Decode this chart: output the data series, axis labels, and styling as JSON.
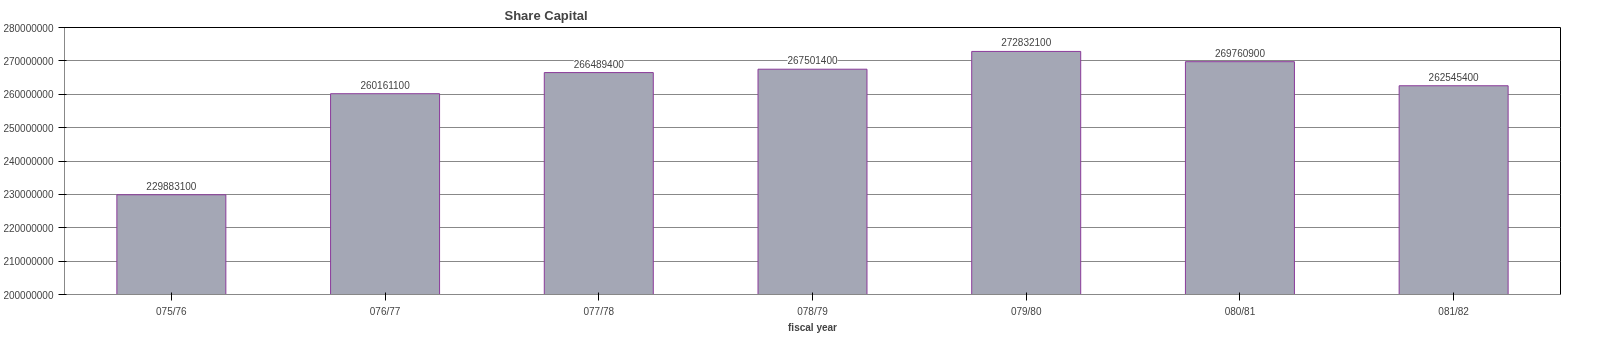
{
  "chart_data": {
    "type": "bar",
    "title": "Share Capital",
    "xlabel": "fiscal year",
    "categories": [
      "075/76",
      "076/77",
      "077/78",
      "078/79",
      "079/80",
      "080/81",
      "081/82"
    ],
    "values": [
      229883100,
      260161100,
      266489400,
      267501400,
      272832100,
      269760900,
      262545400
    ],
    "color": "#a4a7b5",
    "ylim": [
      200000000,
      280000000
    ],
    "yticks": [
      200000000,
      210000000,
      220000000,
      230000000,
      240000000,
      250000000,
      260000000,
      270000000,
      280000000
    ],
    "grid": "y",
    "data_labels": true
  }
}
